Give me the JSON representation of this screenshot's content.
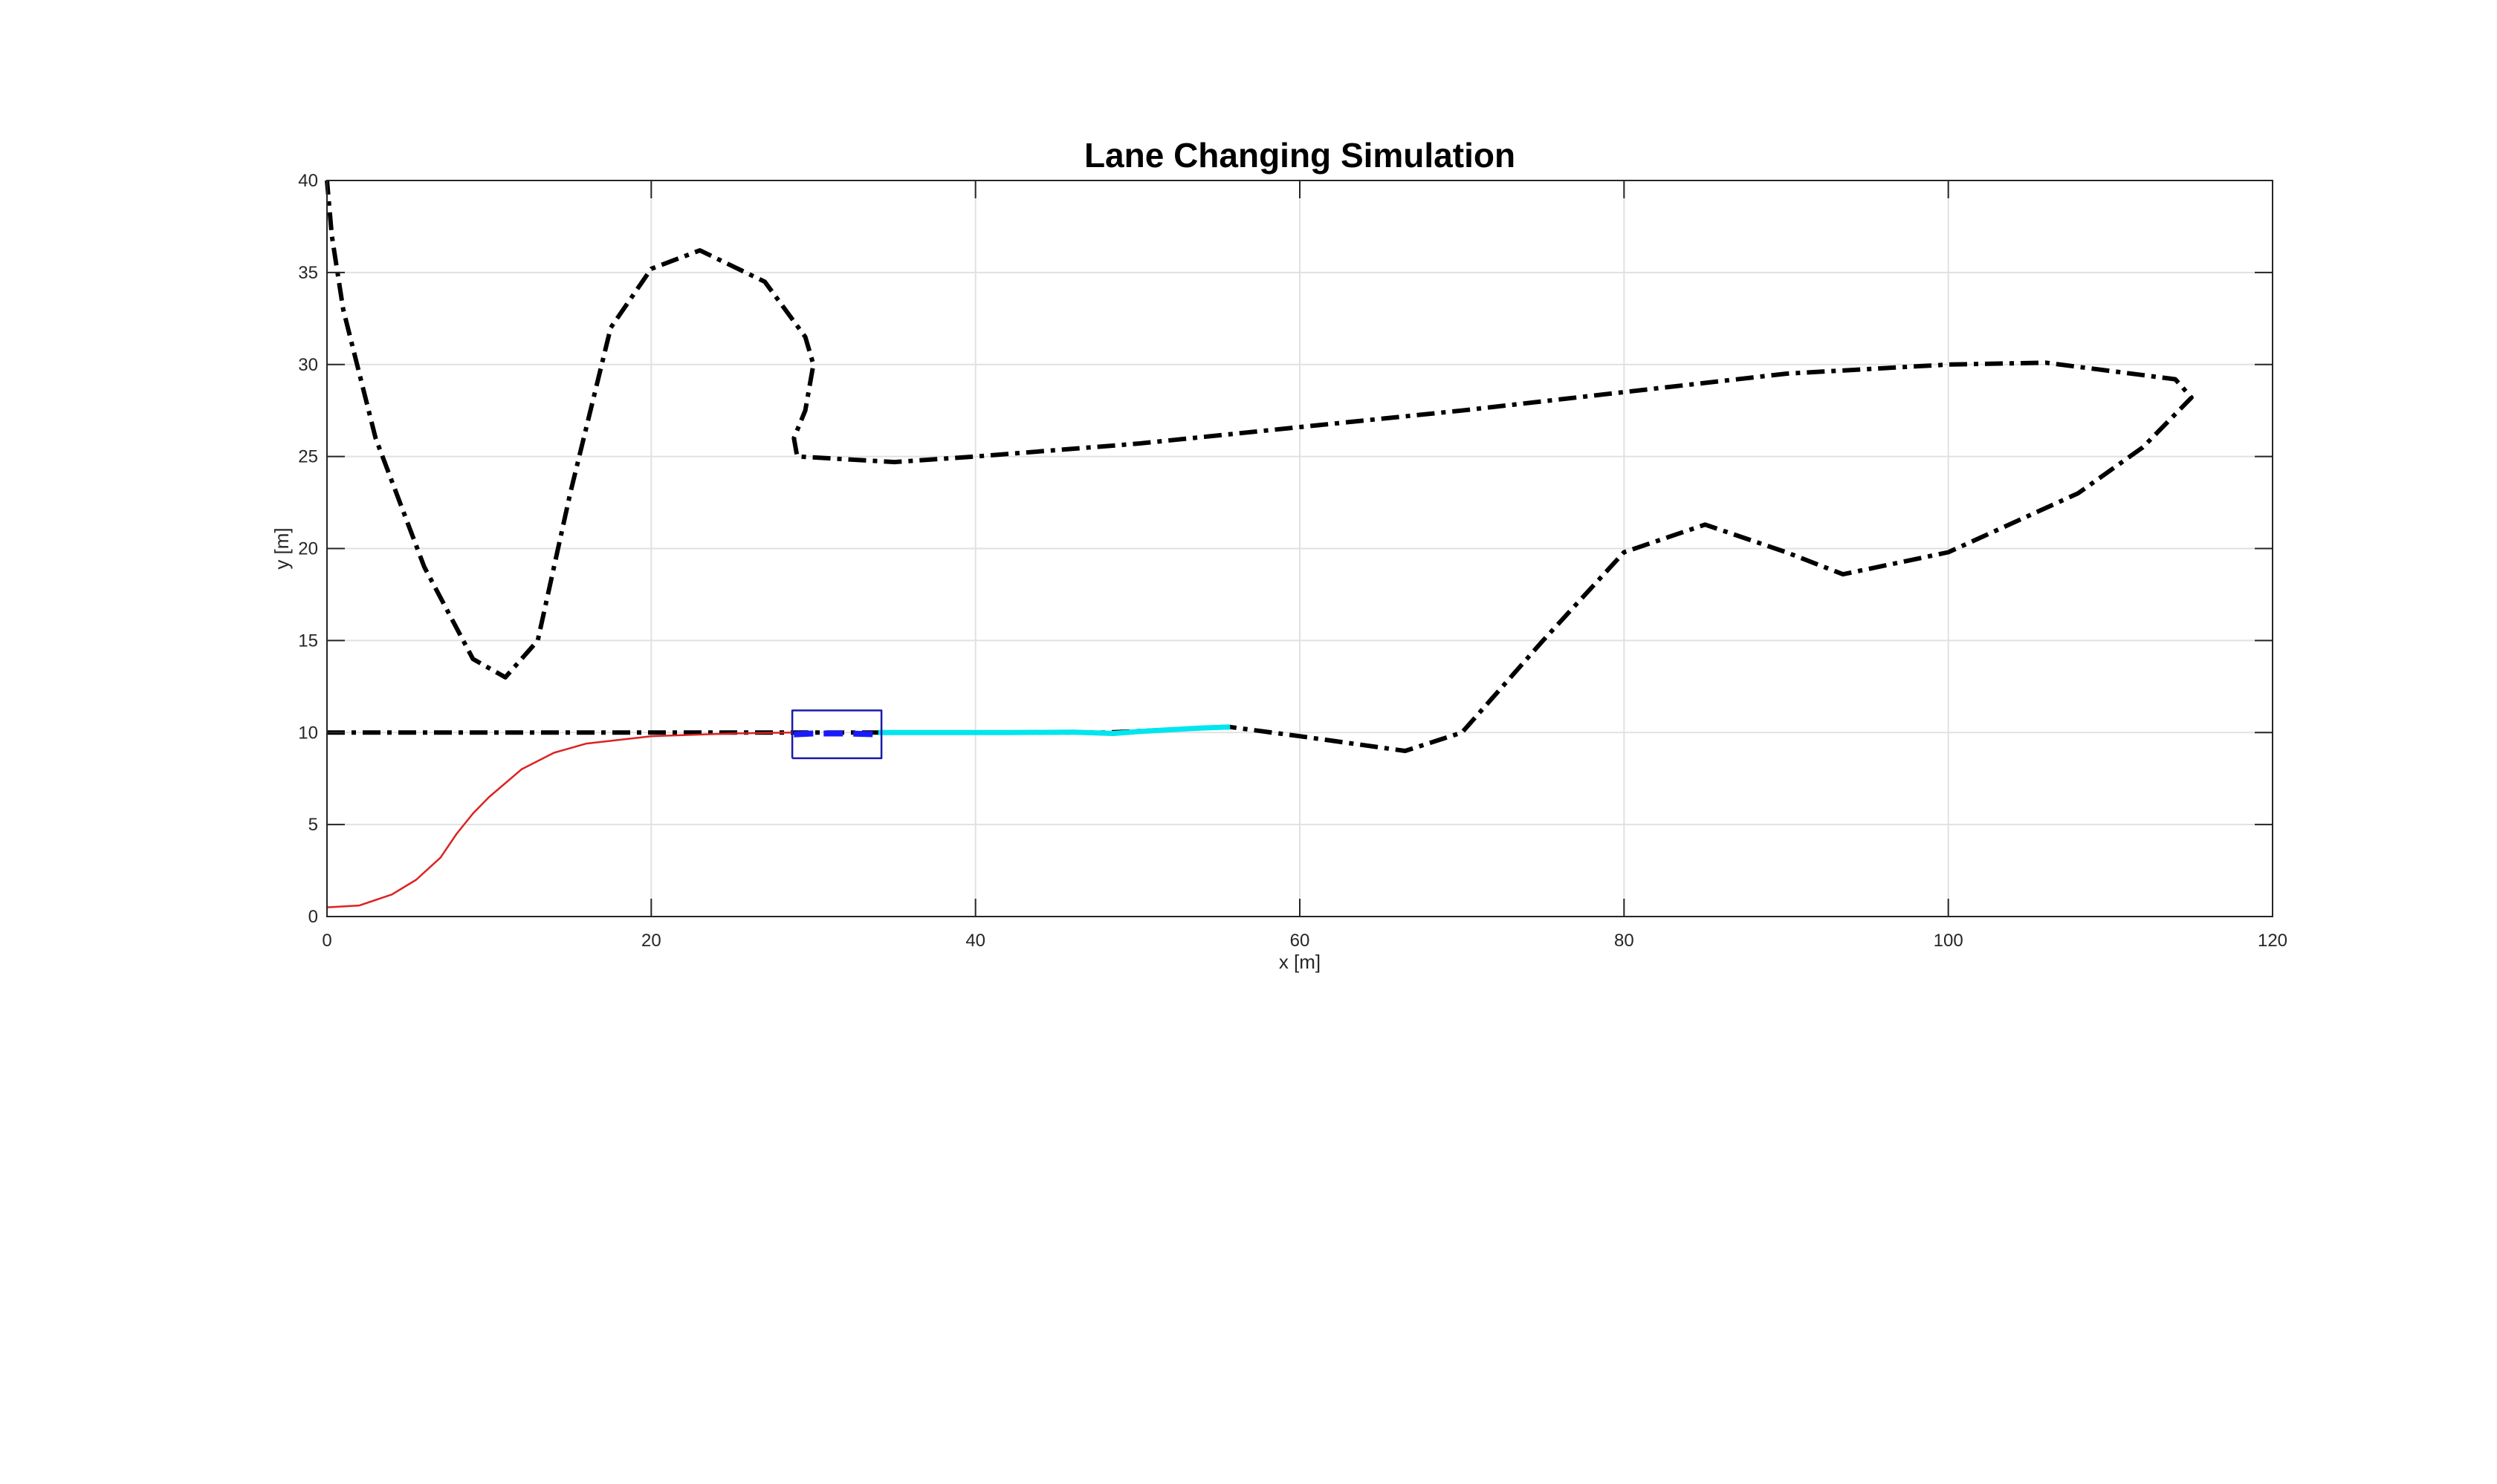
{
  "chart_data": {
    "type": "line",
    "title": "Lane Changing Simulation",
    "xlabel": "x [m]",
    "ylabel": "y [m]",
    "xlim": [
      0,
      120
    ],
    "ylim": [
      0,
      40
    ],
    "xticks": [
      0,
      20,
      40,
      60,
      80,
      100,
      120
    ],
    "yticks": [
      0,
      5,
      10,
      15,
      20,
      25,
      30,
      35,
      40
    ],
    "grid": true,
    "series": [
      {
        "style": "dash-dot",
        "color": "#000000",
        "x": [
          0,
          10,
          20,
          28.7,
          34,
          40,
          48,
          55.7,
          60,
          66.5,
          70,
          75,
          80,
          85,
          90,
          93.5,
          100,
          108,
          112,
          115,
          114,
          106,
          100,
          90,
          80,
          70,
          60,
          50,
          40,
          35,
          29,
          28.8,
          29.5,
          30,
          29.5,
          27,
          23,
          20,
          17.5,
          15,
          13,
          11,
          9,
          6,
          3,
          1,
          0.3,
          0
        ],
        "y": [
          10,
          10,
          10,
          10,
          10,
          10,
          10,
          10.3,
          9.8,
          9,
          10,
          15,
          19.8,
          21.3,
          19.8,
          18.6,
          19.8,
          23,
          25.5,
          28.2,
          29.2,
          30.1,
          30,
          29.5,
          28.5,
          27.5,
          26.6,
          25.7,
          25,
          24.7,
          25,
          26,
          27.5,
          30,
          31.5,
          34.5,
          36.2,
          35.2,
          32,
          23,
          15,
          13,
          14,
          19,
          26,
          33,
          37,
          40
        ]
      },
      {
        "style": "solid",
        "color": "#dd2222",
        "x": [
          0,
          2,
          4,
          5.5,
          7,
          8,
          9,
          10,
          12,
          14,
          16,
          20,
          25,
          28.7
        ],
        "y": [
          0.5,
          0.6,
          1.2,
          2,
          3.2,
          4.5,
          5.6,
          6.5,
          8,
          8.9,
          9.4,
          9.8,
          9.95,
          10
        ]
      },
      {
        "style": "solid",
        "color": "#00e5ee",
        "x": [
          34,
          38,
          42,
          46,
          48.5,
          50,
          52,
          54,
          55.7
        ],
        "y": [
          10,
          10,
          10,
          10.02,
          9.95,
          10.05,
          10.15,
          10.25,
          10.3
        ]
      },
      {
        "style": "dashed",
        "color": "#1a1aff",
        "x": [
          28.8,
          30,
          32,
          34
        ],
        "y": [
          9.9,
          9.95,
          9.95,
          9.9
        ]
      },
      {
        "style": "box",
        "color": "#1a1aa8",
        "x": [
          28.7,
          34.2,
          34.2,
          28.7,
          28.7
        ],
        "y": [
          8.6,
          8.6,
          11.2,
          11.2,
          8.6
        ]
      }
    ]
  }
}
